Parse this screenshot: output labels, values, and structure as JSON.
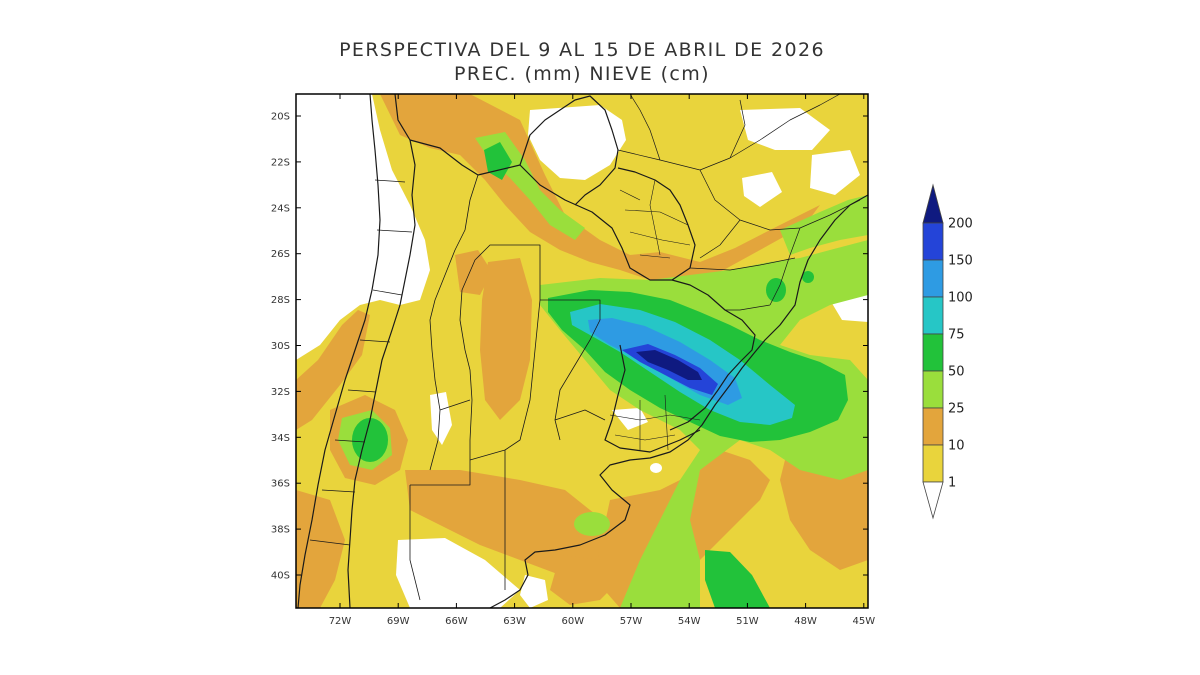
{
  "title": {
    "line1": "PERSPECTIVA DEL 9 AL 15 DE ABRIL DE 2026",
    "line2": "PREC. (mm) NIEVE (cm)"
  },
  "lat_ticks": [
    "20S",
    "22S",
    "24S",
    "26S",
    "28S",
    "30S",
    "32S",
    "34S",
    "36S",
    "38S",
    "40S"
  ],
  "lon_ticks": [
    "72W",
    "69W",
    "66W",
    "63W",
    "60W",
    "57W",
    "54W",
    "51W",
    "48W",
    "45W"
  ],
  "legend": {
    "labels": [
      "200",
      "150",
      "100",
      "75",
      "50",
      "25",
      "10",
      "1"
    ],
    "colors": [
      "#0f1a80",
      "#2444d8",
      "#2e9be3",
      "#26c6c6",
      "#22c23a",
      "#9ade3c",
      "#e3a53c",
      "#e9d43c",
      "#ffffff"
    ]
  },
  "colors": {
    "none": "#ffffff",
    "lvl1": "#e9d43c",
    "lvl10": "#e3a53c",
    "lvl25": "#9ade3c",
    "lvl50": "#22c23a",
    "lvl75": "#26c6c6",
    "lvl100": "#2e9be3",
    "lvl150": "#2444d8",
    "lvl200": "#0f1a80"
  }
}
